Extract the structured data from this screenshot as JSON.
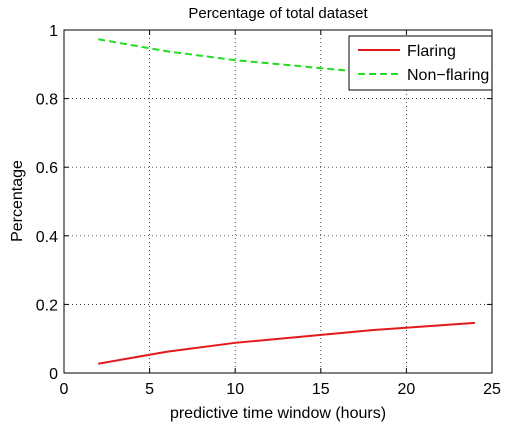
{
  "chart_data": {
    "type": "line",
    "title": "Percentage of total dataset",
    "xlabel": "predictive time window (hours)",
    "ylabel": "Percentage",
    "xlim": [
      0,
      25
    ],
    "ylim": [
      0,
      1
    ],
    "xticks": [
      0,
      5,
      10,
      15,
      20,
      25
    ],
    "xtick_labels": [
      "0",
      "5",
      "10",
      "15",
      "20",
      "25"
    ],
    "yticks": [
      0,
      0.2,
      0.4,
      0.6,
      0.8,
      1
    ],
    "ytick_labels": [
      "0",
      "0.2",
      "0.4",
      "0.6",
      "0.8",
      "1"
    ],
    "grid": true,
    "legend_position": "top-right",
    "x": [
      2,
      6,
      10,
      18,
      24
    ],
    "series": [
      {
        "name": "Flaring",
        "values": [
          0.027,
          0.062,
          0.088,
          0.125,
          0.146
        ],
        "color": "#e31a1c",
        "style": "solid"
      },
      {
        "name": "Non−flaring",
        "values": [
          0.973,
          0.938,
          0.912,
          0.875,
          0.854
        ],
        "color": "#22dd22",
        "style": "dashed"
      }
    ]
  }
}
